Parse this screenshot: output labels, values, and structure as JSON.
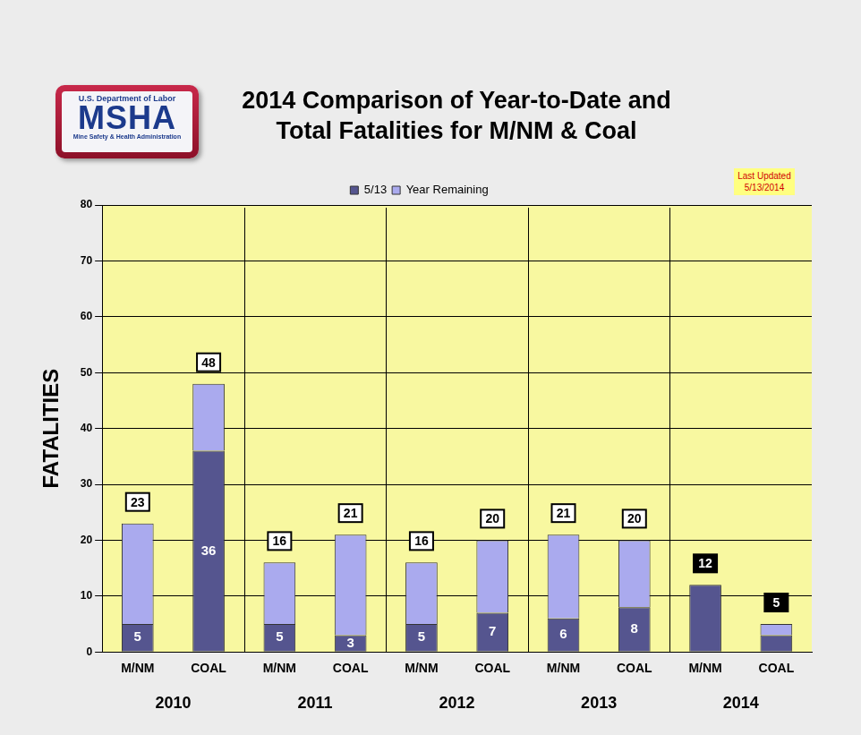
{
  "chart_data": {
    "type": "bar",
    "title": "2014 Comparison of Year-to-Date and\nTotal Fatalities for M/NM & Coal",
    "logo": [
      "U.S. Department of Labor",
      "MSHA",
      "Mine Safety & Health Administration"
    ],
    "last_updated": [
      "Last Updated",
      "5/13/2014"
    ],
    "y_label": "FATALITIES",
    "categories": [
      "M/NM",
      "COAL",
      "M/NM",
      "COAL",
      "M/NM",
      "COAL",
      "M/NM",
      "COAL",
      "M/NM",
      "COAL"
    ],
    "groups": [
      "2010",
      "2011",
      "2012",
      "2013",
      "2014"
    ],
    "series": [
      {
        "name": "5/13",
        "color": "#55558f",
        "values": [
          5,
          36,
          5,
          3,
          5,
          7,
          6,
          8,
          12,
          3
        ],
        "value_labels": [
          "5",
          "36",
          "5",
          "3",
          "5",
          "7",
          "6",
          "8",
          null,
          null
        ]
      },
      {
        "name": "Year Remaining",
        "color": "#aaaaee",
        "values": [
          18,
          12,
          11,
          18,
          11,
          13,
          15,
          12,
          0,
          2
        ]
      }
    ],
    "totals": [
      23,
      48,
      16,
      21,
      16,
      20,
      21,
      20,
      12,
      5
    ],
    "stacked": true,
    "data_labels": true,
    "ylim": [
      0,
      80
    ],
    "yticks": [
      0,
      10,
      20,
      30,
      40,
      50,
      60,
      70,
      80
    ],
    "grid": true,
    "legend": "top"
  }
}
